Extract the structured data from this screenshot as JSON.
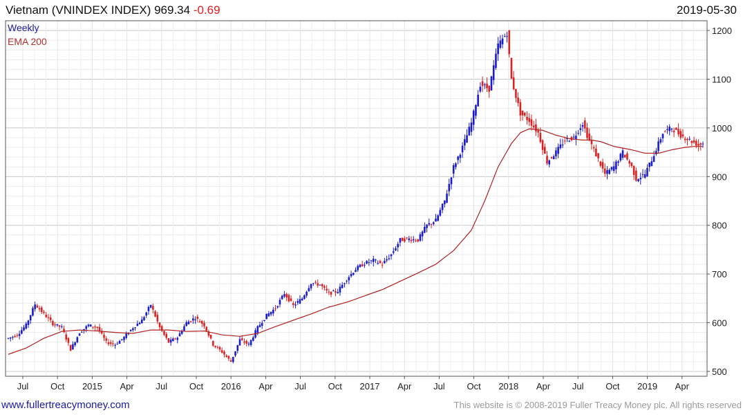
{
  "header": {
    "title": "Vietnam (VNINDEX INDEX)",
    "last": "969.34",
    "change": "-0.69",
    "date": "2019-05-30"
  },
  "legend": {
    "weekly": "Weekly",
    "ema": "EMA 200"
  },
  "footer": {
    "site": "www.fullertreacymoney.com",
    "copyright": "This website is © 2008-2019 Fuller Treacy Money plc. All rights reserved"
  },
  "colors": {
    "up": "#1a1ad0",
    "down": "#e02020",
    "ema": "#b02020",
    "grid": "#dcdcdc"
  },
  "chart_data": {
    "type": "candlestick",
    "frequency": "weekly",
    "y_ticks": [
      500,
      600,
      700,
      800,
      900,
      1000,
      1100,
      1200
    ],
    "ylim": [
      490,
      1220
    ],
    "x_tick_labels": [
      "Jul",
      "Oct",
      "2015",
      "Apr",
      "Jul",
      "Oct",
      "2016",
      "Apr",
      "Jul",
      "Oct",
      "2017",
      "Apr",
      "Jul",
      "Oct",
      "2018",
      "Apr",
      "Jul",
      "Oct",
      "2019",
      "Apr"
    ],
    "grid": true,
    "price_path": [
      [
        0,
        568
      ],
      [
        4,
        575
      ],
      [
        8,
        595
      ],
      [
        12,
        638
      ],
      [
        16,
        618
      ],
      [
        20,
        598
      ],
      [
        24,
        590
      ],
      [
        28,
        545
      ],
      [
        32,
        580
      ],
      [
        36,
        595
      ],
      [
        40,
        590
      ],
      [
        44,
        560
      ],
      [
        48,
        555
      ],
      [
        52,
        570
      ],
      [
        56,
        590
      ],
      [
        60,
        605
      ],
      [
        64,
        637
      ],
      [
        68,
        590
      ],
      [
        72,
        560
      ],
      [
        76,
        570
      ],
      [
        80,
        600
      ],
      [
        84,
        610
      ],
      [
        88,
        595
      ],
      [
        92,
        555
      ],
      [
        96,
        540
      ],
      [
        100,
        520
      ],
      [
        104,
        565
      ],
      [
        108,
        555
      ],
      [
        112,
        590
      ],
      [
        116,
        615
      ],
      [
        120,
        630
      ],
      [
        124,
        660
      ],
      [
        128,
        635
      ],
      [
        132,
        650
      ],
      [
        136,
        682
      ],
      [
        140,
        678
      ],
      [
        144,
        660
      ],
      [
        148,
        665
      ],
      [
        152,
        690
      ],
      [
        156,
        710
      ],
      [
        160,
        722
      ],
      [
        164,
        728
      ],
      [
        168,
        720
      ],
      [
        172,
        740
      ],
      [
        176,
        770
      ],
      [
        180,
        772
      ],
      [
        184,
        770
      ],
      [
        188,
        800
      ],
      [
        192,
        810
      ],
      [
        196,
        850
      ],
      [
        200,
        920
      ],
      [
        204,
        960
      ],
      [
        208,
        1010
      ],
      [
        212,
        1090
      ],
      [
        216,
        1080
      ],
      [
        220,
        1170
      ],
      [
        224,
        1195
      ],
      [
        226,
        1100
      ],
      [
        230,
        1030
      ],
      [
        234,
        1015
      ],
      [
        238,
        990
      ],
      [
        240,
        960
      ],
      [
        242,
        930
      ],
      [
        246,
        950
      ],
      [
        250,
        975
      ],
      [
        254,
        980
      ],
      [
        258,
        1010
      ],
      [
        260,
        985
      ],
      [
        264,
        945
      ],
      [
        268,
        905
      ],
      [
        272,
        920
      ],
      [
        276,
        950
      ],
      [
        280,
        920
      ],
      [
        282,
        895
      ],
      [
        286,
        905
      ],
      [
        290,
        945
      ],
      [
        294,
        990
      ],
      [
        298,
        1000
      ],
      [
        302,
        985
      ],
      [
        306,
        975
      ],
      [
        310,
        965
      ],
      [
        312,
        969
      ]
    ],
    "ema_path": [
      [
        0,
        535
      ],
      [
        8,
        548
      ],
      [
        16,
        568
      ],
      [
        24,
        582
      ],
      [
        32,
        585
      ],
      [
        40,
        583
      ],
      [
        48,
        580
      ],
      [
        56,
        578
      ],
      [
        64,
        585
      ],
      [
        72,
        585
      ],
      [
        80,
        582
      ],
      [
        88,
        583
      ],
      [
        96,
        575
      ],
      [
        104,
        572
      ],
      [
        112,
        578
      ],
      [
        120,
        592
      ],
      [
        128,
        605
      ],
      [
        136,
        618
      ],
      [
        144,
        632
      ],
      [
        152,
        642
      ],
      [
        160,
        655
      ],
      [
        168,
        668
      ],
      [
        176,
        685
      ],
      [
        184,
        702
      ],
      [
        192,
        720
      ],
      [
        200,
        748
      ],
      [
        208,
        790
      ],
      [
        214,
        850
      ],
      [
        220,
        920
      ],
      [
        226,
        968
      ],
      [
        230,
        990
      ],
      [
        234,
        998
      ],
      [
        240,
        995
      ],
      [
        246,
        985
      ],
      [
        252,
        978
      ],
      [
        258,
        975
      ],
      [
        262,
        975
      ],
      [
        266,
        972
      ],
      [
        272,
        962
      ],
      [
        280,
        955
      ],
      [
        286,
        948
      ],
      [
        292,
        948
      ],
      [
        298,
        955
      ],
      [
        304,
        960
      ],
      [
        308,
        962
      ],
      [
        312,
        962
      ]
    ]
  }
}
